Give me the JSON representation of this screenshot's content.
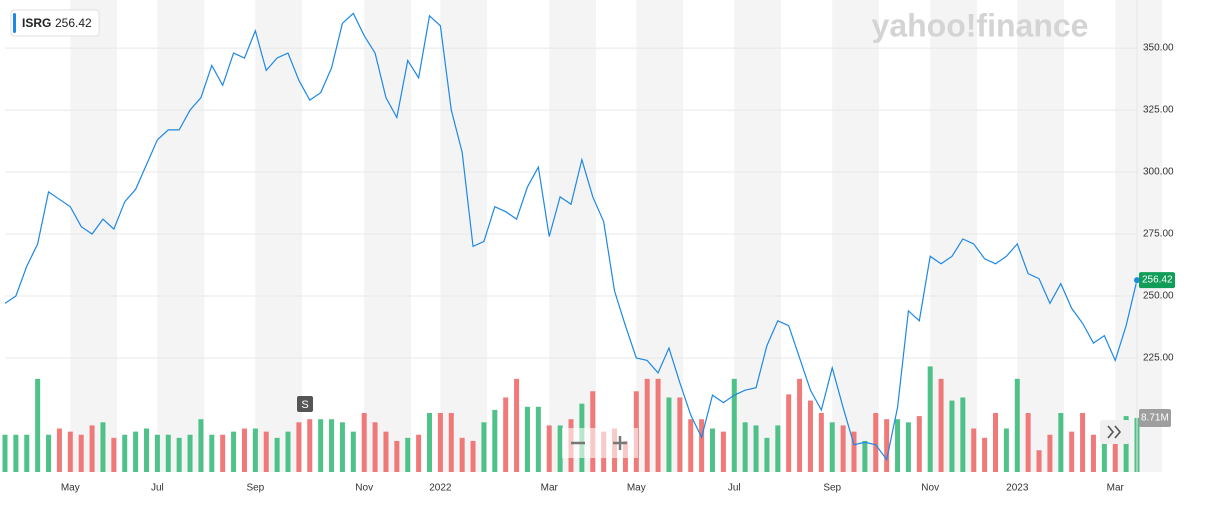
{
  "chart_data": {
    "type": "line",
    "ticker": "ISRG",
    "logo": "yahoo!finance",
    "event_marker": "S",
    "categories": [
      null,
      null,
      null,
      null,
      null,
      null,
      "May",
      null,
      null,
      null,
      null,
      null,
      null,
      null,
      "Jul",
      null,
      null,
      null,
      null,
      null,
      null,
      null,
      null,
      "Sep",
      null,
      null,
      null,
      null,
      null,
      null,
      null,
      null,
      null,
      "Nov",
      null,
      null,
      null,
      null,
      null,
      null,
      "2022",
      null,
      null,
      null,
      null,
      null,
      null,
      null,
      null,
      null,
      "Mar",
      null,
      null,
      null,
      null,
      null,
      null,
      null,
      "May",
      null,
      null,
      null,
      null,
      null,
      null,
      null,
      null,
      "Jul",
      null,
      null,
      null,
      null,
      null,
      null,
      null,
      null,
      "Sep",
      null,
      null,
      null,
      null,
      null,
      null,
      null,
      null,
      "Nov",
      null,
      null,
      null,
      null,
      null,
      null,
      null,
      "2023",
      null,
      null,
      null,
      null,
      null,
      null,
      null,
      null,
      "Mar",
      null,
      null
    ],
    "series": [
      {
        "name": "ISRG",
        "color": "#1e88e5",
        "values": [
          247,
          250,
          262,
          271,
          292,
          289,
          286,
          278,
          275,
          281,
          277,
          288,
          293,
          303,
          313,
          317,
          317,
          325,
          330,
          343,
          335,
          348,
          346,
          357,
          341,
          346,
          348,
          337,
          329,
          332,
          342,
          360,
          364,
          355,
          348,
          330,
          322,
          345,
          338,
          363,
          359,
          325,
          308,
          270,
          272,
          286,
          284,
          281,
          294,
          302,
          274,
          290,
          287,
          305,
          290,
          280,
          252,
          238,
          225,
          224,
          219,
          229,
          215,
          202,
          193,
          210,
          207,
          210,
          212,
          213,
          230,
          240,
          238,
          225,
          212,
          204,
          221,
          205,
          190,
          191,
          190,
          184,
          205,
          244,
          240,
          266,
          263,
          266,
          273,
          271,
          265,
          263,
          266,
          271,
          259,
          257,
          247,
          255,
          245,
          239,
          231,
          234,
          224,
          238,
          256.42
        ]
      },
      {
        "name": "Volume",
        "axis": "y2",
        "up_color": "#3cbb7c",
        "down_color": "#ee6a6a",
        "values": [
          6,
          6,
          6,
          15,
          6,
          7,
          6.5,
          6,
          7.5,
          8,
          5.5,
          6,
          6.5,
          7,
          6,
          6,
          5.5,
          6,
          8.5,
          6,
          6,
          6.5,
          7,
          7,
          6.5,
          5.5,
          6.5,
          8,
          8.5,
          8.5,
          8.5,
          8,
          6.5,
          9.5,
          8,
          6.5,
          5,
          5.5,
          6,
          9.5,
          9.5,
          9.5,
          5.5,
          5,
          8,
          10,
          12,
          15,
          10.5,
          10.5,
          7.5,
          7.5,
          8.5,
          11,
          13,
          6.5,
          7,
          5,
          13,
          15,
          15,
          12,
          12,
          8.5,
          8.5,
          7,
          6.5,
          15,
          8,
          7.5,
          5.5,
          7.5,
          12.5,
          15,
          11.5,
          9.5,
          8,
          7.5,
          6.5,
          5,
          9.5,
          8.5,
          8.5,
          8,
          9,
          17,
          15,
          11.5,
          12,
          7,
          5.5,
          9.5,
          7,
          15,
          9.5,
          3.5,
          6,
          9.5,
          6.5,
          9.5,
          6,
          7,
          6,
          9,
          8.71
        ],
        "value_labels": {
          "104": "8.71M"
        }
      }
    ],
    "ylim": [
      179,
      369.4
    ],
    "yticks": [
      {
        "value": 225,
        "label": "225.00"
      },
      {
        "value": 250,
        "label": "250.00"
      },
      {
        "value": 275,
        "label": "275.00"
      },
      {
        "value": 300,
        "label": "300.00"
      },
      {
        "value": 325,
        "label": "325.00"
      },
      {
        "value": 350,
        "label": "350.00"
      }
    ],
    "y2lim": [
      0,
      76
    ],
    "grid": true
  }
}
